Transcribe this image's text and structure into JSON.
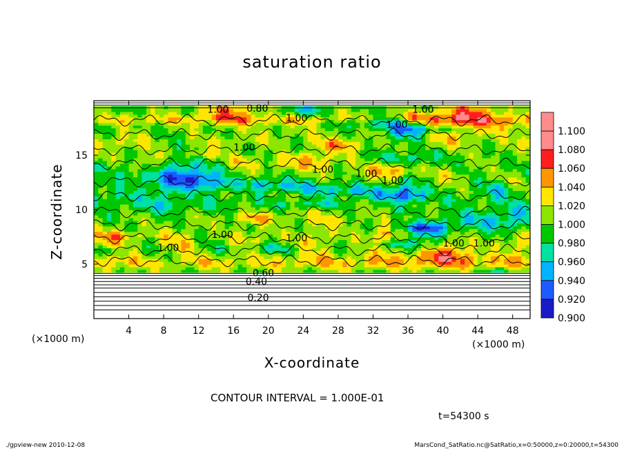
{
  "chart_data": {
    "type": "heatmap",
    "title": "saturation ratio",
    "xlabel": "X-coordinate",
    "ylabel": "Z-coordinate",
    "x_unit_left": "(×1000 m)",
    "x_unit_right": "(×1000 m)",
    "xlim": [
      0,
      50
    ],
    "ylim": [
      0,
      20
    ],
    "x_ticks": [
      "4",
      "8",
      "12",
      "16",
      "20",
      "24",
      "28",
      "32",
      "36",
      "40",
      "44",
      "48"
    ],
    "y_ticks": [
      "5",
      "10",
      "15"
    ],
    "colorbar": {
      "levels": [
        "0.900",
        "0.920",
        "0.940",
        "0.960",
        "0.980",
        "1.000",
        "1.020",
        "1.040",
        "1.060",
        "1.080",
        "1.100"
      ],
      "colors": [
        "#6a0dad",
        "#1a1ac8",
        "#1e5aff",
        "#00b4ff",
        "#00e0a0",
        "#00c800",
        "#8ce600",
        "#ffe600",
        "#ff9600",
        "#ff1e1e",
        "#ff8c8c"
      ]
    },
    "contour_labels": [
      {
        "text": "1.00",
        "x": 13,
        "z": 18.9
      },
      {
        "text": "0.80",
        "x": 17.5,
        "z": 19.0
      },
      {
        "text": "1.00",
        "x": 22,
        "z": 18.1
      },
      {
        "text": "1.00",
        "x": 36.5,
        "z": 18.9
      },
      {
        "text": "1.00",
        "x": 33.5,
        "z": 17.5
      },
      {
        "text": "1.00",
        "x": 16,
        "z": 15.4
      },
      {
        "text": "1.00",
        "x": 25,
        "z": 13.4
      },
      {
        "text": "1.00",
        "x": 30,
        "z": 13.0
      },
      {
        "text": "1.00",
        "x": 33,
        "z": 12.4
      },
      {
        "text": "1.00",
        "x": 13.5,
        "z": 7.4
      },
      {
        "text": "1.00",
        "x": 22,
        "z": 7.1
      },
      {
        "text": "1.00",
        "x": 40,
        "z": 6.6
      },
      {
        "text": "1.00",
        "x": 43.5,
        "z": 6.6
      },
      {
        "text": "1.00",
        "x": 7.3,
        "z": 6.2
      },
      {
        "text": "0.60",
        "x": 18.2,
        "z": 3.9
      },
      {
        "text": "0.40",
        "x": 17.4,
        "z": 3.1
      },
      {
        "text": "0.20",
        "x": 17.6,
        "z": 1.6
      }
    ],
    "contour_interval_text": "CONTOUR INTERVAL = 1.000E-01",
    "time_text": "t=54300 s"
  },
  "footer": {
    "left": "./gpview-new   2010-12-08",
    "right": "MarsCond_SatRatio.nc@SatRatio,x=0:50000,z=0:20000,t=54300"
  }
}
